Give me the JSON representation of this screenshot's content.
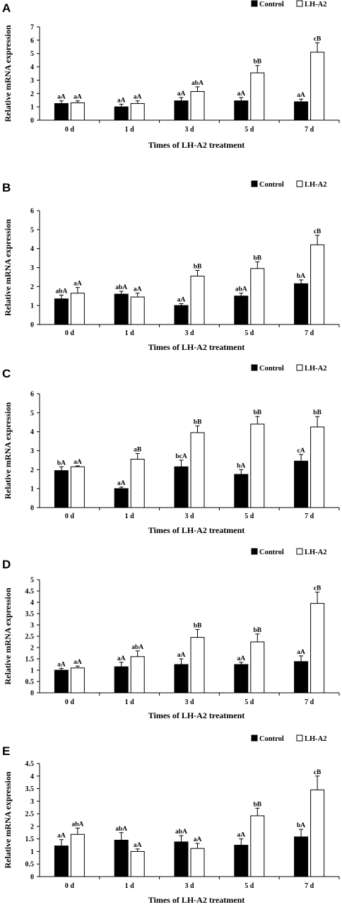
{
  "figure": {
    "colors": {
      "control": "#000000",
      "treatment": "#ffffff",
      "axis": "#000000"
    }
  },
  "chart_data": [
    {
      "panel": "A",
      "type": "bar",
      "categories": [
        "0 d",
        "1 d",
        "3 d",
        "5 d",
        "7 d"
      ],
      "series": [
        {
          "name": "Control",
          "values": [
            1.25,
            1.0,
            1.45,
            1.45,
            1.38
          ],
          "errors": [
            0.2,
            0.2,
            0.25,
            0.25,
            0.2
          ],
          "labels": [
            "aA",
            "aA",
            "aA",
            "aA",
            "aA"
          ]
        },
        {
          "name": "LH-A2",
          "values": [
            1.3,
            1.25,
            2.15,
            3.55,
            5.1
          ],
          "errors": [
            0.15,
            0.2,
            0.35,
            0.55,
            0.7
          ],
          "labels": [
            "aA",
            "aA",
            "abA",
            "bB",
            "cB"
          ]
        }
      ],
      "xlabel": "Times of LH-A2 treatment",
      "ylabel": "Relative mRNA expression",
      "ylim": [
        0,
        7
      ],
      "yticks": [
        "0",
        "1",
        "2",
        "3",
        "4",
        "5",
        "6",
        "7"
      ],
      "legend": "top-right"
    },
    {
      "panel": "B",
      "type": "bar",
      "categories": [
        "0 d",
        "1 d",
        "3 d",
        "5 d",
        "7 d"
      ],
      "series": [
        {
          "name": "Control",
          "values": [
            1.35,
            1.6,
            1.0,
            1.5,
            2.15
          ],
          "errors": [
            0.2,
            0.15,
            0.1,
            0.15,
            0.2
          ],
          "labels": [
            "abA",
            "abA",
            "aA",
            "abA",
            "bA"
          ]
        },
        {
          "name": "LH-A2",
          "values": [
            1.65,
            1.45,
            2.55,
            2.95,
            4.2
          ],
          "errors": [
            0.3,
            0.2,
            0.3,
            0.35,
            0.5
          ],
          "labels": [
            "aA",
            "aA",
            "bB",
            "bB",
            "cB"
          ]
        }
      ],
      "xlabel": "Times of LH-A2 treatment",
      "ylabel": "Relative mRNA expression",
      "ylim": [
        0,
        6
      ],
      "yticks": [
        "0",
        "1",
        "2",
        "3",
        "4",
        "5",
        "6"
      ],
      "legend": "top-right"
    },
    {
      "panel": "C",
      "type": "bar",
      "categories": [
        "0 d",
        "1 d",
        "3 d",
        "5 d",
        "7 d"
      ],
      "series": [
        {
          "name": "Control",
          "values": [
            1.95,
            1.0,
            2.15,
            1.75,
            2.45
          ],
          "errors": [
            0.2,
            0.08,
            0.35,
            0.25,
            0.35
          ],
          "labels": [
            "bA",
            "aA",
            "bcA",
            "bA",
            "cA"
          ]
        },
        {
          "name": "LH-A2",
          "values": [
            2.15,
            2.55,
            3.95,
            4.4,
            4.25
          ],
          "errors": [
            0.05,
            0.3,
            0.35,
            0.4,
            0.55
          ],
          "labels": [
            "aA",
            "aB",
            "bB",
            "bB",
            "bB"
          ]
        }
      ],
      "xlabel": "Times of LH-A2 treatment",
      "ylabel": "Relative mRNA expression",
      "ylim": [
        0,
        6
      ],
      "yticks": [
        "0",
        "1",
        "2",
        "3",
        "4",
        "5",
        "6"
      ],
      "legend": "top-right"
    },
    {
      "panel": "D",
      "type": "bar",
      "categories": [
        "0 d",
        "1 d",
        "3 d",
        "5 d",
        "7 d"
      ],
      "series": [
        {
          "name": "Control",
          "values": [
            1.0,
            1.15,
            1.25,
            1.25,
            1.38
          ],
          "errors": [
            0.08,
            0.2,
            0.25,
            0.1,
            0.25
          ],
          "labels": [
            "aA",
            "aA",
            "aA",
            "aA",
            "aA"
          ]
        },
        {
          "name": "LH-A2",
          "values": [
            1.1,
            1.6,
            2.45,
            2.25,
            3.95
          ],
          "errors": [
            0.08,
            0.25,
            0.35,
            0.35,
            0.5
          ],
          "labels": [
            "aA",
            "abA",
            "bB",
            "bB",
            "cB"
          ]
        }
      ],
      "xlabel": "Times of LH-A2 treatment",
      "ylabel": "Relative mRNA expression",
      "ylim": [
        0,
        5
      ],
      "yticks": [
        "0",
        "0.5",
        "1",
        "1.5",
        "2",
        "2.5",
        "3",
        "3.5",
        "4",
        "4.5",
        "5"
      ],
      "legend": "top-right"
    },
    {
      "panel": "E",
      "type": "bar",
      "categories": [
        "0 d",
        "1 d",
        "3 d",
        "5 d",
        "7 d"
      ],
      "series": [
        {
          "name": "Control",
          "values": [
            1.22,
            1.45,
            1.38,
            1.25,
            1.58
          ],
          "errors": [
            0.25,
            0.3,
            0.25,
            0.25,
            0.3
          ],
          "labels": [
            "aA",
            "abA",
            "abA",
            "aA",
            "bA"
          ]
        },
        {
          "name": "LH-A2",
          "values": [
            1.68,
            1.0,
            1.12,
            2.42,
            3.45
          ],
          "errors": [
            0.25,
            0.1,
            0.2,
            0.3,
            0.55
          ],
          "labels": [
            "abA",
            "aA",
            "aA",
            "bB",
            "cB"
          ]
        }
      ],
      "xlabel": "Times of LH-A2 treatment",
      "ylabel": "Relative mRNA expression",
      "ylim": [
        0,
        4.5
      ],
      "yticks": [
        "0",
        "0.5",
        "1",
        "1.5",
        "2",
        "2.5",
        "3",
        "3.5",
        "4",
        "4.5"
      ],
      "legend": "top-right"
    }
  ]
}
